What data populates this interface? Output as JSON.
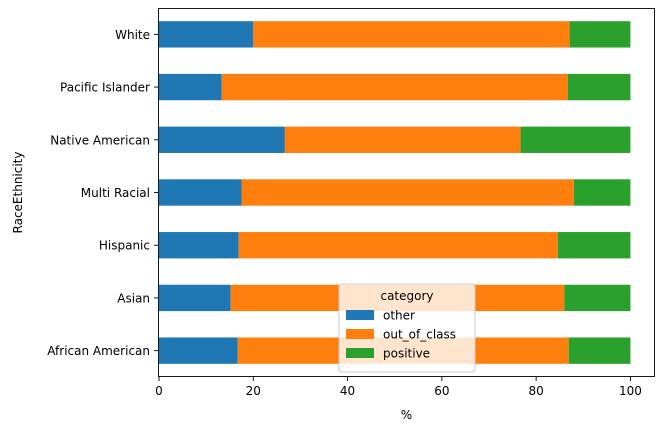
{
  "chart_data": {
    "type": "bar",
    "orientation": "horizontal",
    "stacked": true,
    "categories": [
      "African American",
      "Asian",
      "Hispanic",
      "Multi Racial",
      "Native American",
      "Pacific Islander",
      "White"
    ],
    "series": [
      {
        "name": "other",
        "color": "#1f77b4",
        "values": [
          16.7,
          15.2,
          16.9,
          17.5,
          26.7,
          13.3,
          20.0
        ]
      },
      {
        "name": "out_of_class",
        "color": "#ff7f0e",
        "values": [
          70.2,
          70.8,
          67.7,
          70.5,
          50.0,
          73.4,
          67.1
        ]
      },
      {
        "name": "positive",
        "color": "#2ca02c",
        "values": [
          13.1,
          14.0,
          15.4,
          12.0,
          23.3,
          13.3,
          12.9
        ]
      }
    ],
    "xlabel": "%",
    "ylabel": "RaceEthnicity",
    "xlim": [
      0,
      105
    ],
    "xticks": [
      0,
      20,
      40,
      60,
      80,
      100
    ],
    "legend": {
      "title": "category",
      "placement": "lower center"
    },
    "grid": false
  }
}
